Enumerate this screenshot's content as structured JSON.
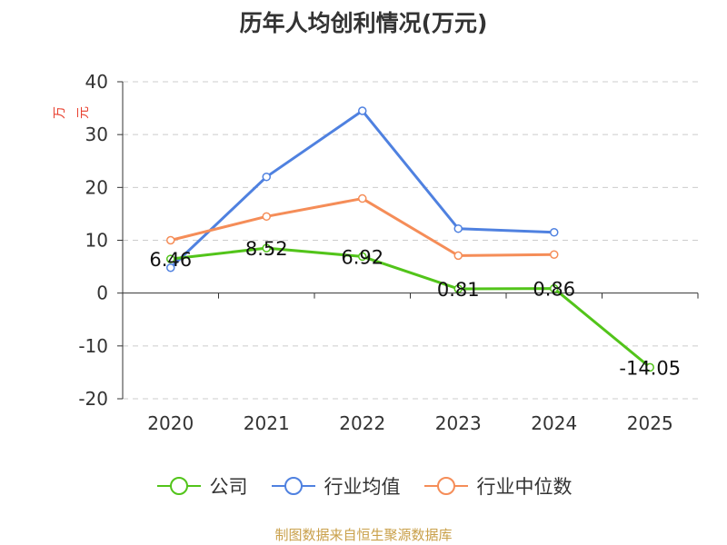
{
  "chart_data": {
    "type": "line",
    "title": "历年人均创利情况(万元)",
    "ylabel": "万元",
    "categories": [
      "2020",
      "2021",
      "2022",
      "2023",
      "2024",
      "2025"
    ],
    "ylim": [
      -20,
      40
    ],
    "yticks": [
      40,
      30,
      20,
      10,
      0,
      -10,
      -20
    ],
    "grid": true,
    "legend_placement": "bottom",
    "series": [
      {
        "name": "公司",
        "color": "#52c41a",
        "values": [
          6.46,
          8.52,
          6.92,
          0.81,
          0.86,
          -14.05
        ],
        "labels": [
          "6.46",
          "8.52",
          "6.92",
          "0.81",
          "0.86",
          "-14.05"
        ]
      },
      {
        "name": "行业均值",
        "color": "#4f81e0",
        "values": [
          4.8,
          22.0,
          34.5,
          12.2,
          11.5,
          null
        ]
      },
      {
        "name": "行业中位数",
        "color": "#f58d58",
        "values": [
          10.0,
          14.5,
          17.9,
          7.1,
          7.3,
          null
        ]
      }
    ]
  },
  "source": "制图数据来自恒生聚源数据库"
}
